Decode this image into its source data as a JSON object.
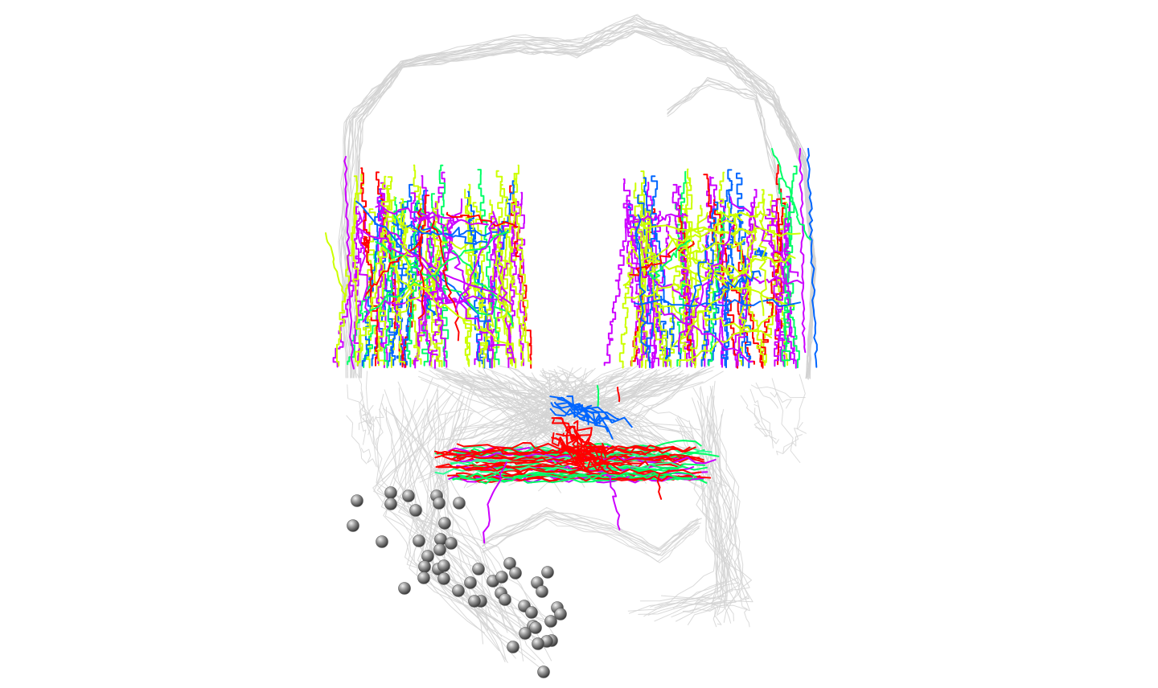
{
  "scene": {
    "background": "#ffffff",
    "context_color": "#d3d3d3",
    "soma_color": "#8c8c8c",
    "branch_colors": {
      "magenta": "#cc00ff",
      "yellow_green": "#ccff00",
      "green": "#00ff66",
      "red": "#ff0000",
      "blue": "#0066ff",
      "light_green": "#33ff99"
    },
    "structures": [
      "context-skeleton-traces",
      "left-arbor",
      "right-arbor",
      "central-commissure",
      "soma-cluster"
    ]
  }
}
